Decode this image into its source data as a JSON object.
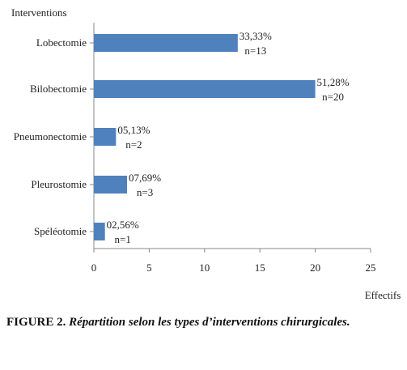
{
  "chart_data": {
    "type": "bar",
    "orientation": "horizontal",
    "ylabel": "Interventions",
    "xlabel": "Effectifs",
    "categories": [
      "Lobectomie",
      "Bilobectomie",
      "Pneumonectomie",
      "Pleurostomie",
      "Spéléotomie"
    ],
    "values": [
      13,
      20,
      2,
      3,
      1
    ],
    "percent_labels": [
      "33,33%",
      "51,28%",
      "05,13%",
      "07,69%",
      "02,56%"
    ],
    "n_labels": [
      "n=13",
      "n=20",
      "n=2",
      "n=3",
      "n=1"
    ],
    "xlim": [
      0,
      25
    ],
    "xticks": [
      "0",
      "5",
      "10",
      "15",
      "20",
      "25"
    ],
    "bar_color": "#4f81bd",
    "grid": false,
    "legend": "none"
  },
  "caption": {
    "figure_label": "FIGURE 2.",
    "text": "Répartition selon les types d’interventions chirurgicales."
  }
}
